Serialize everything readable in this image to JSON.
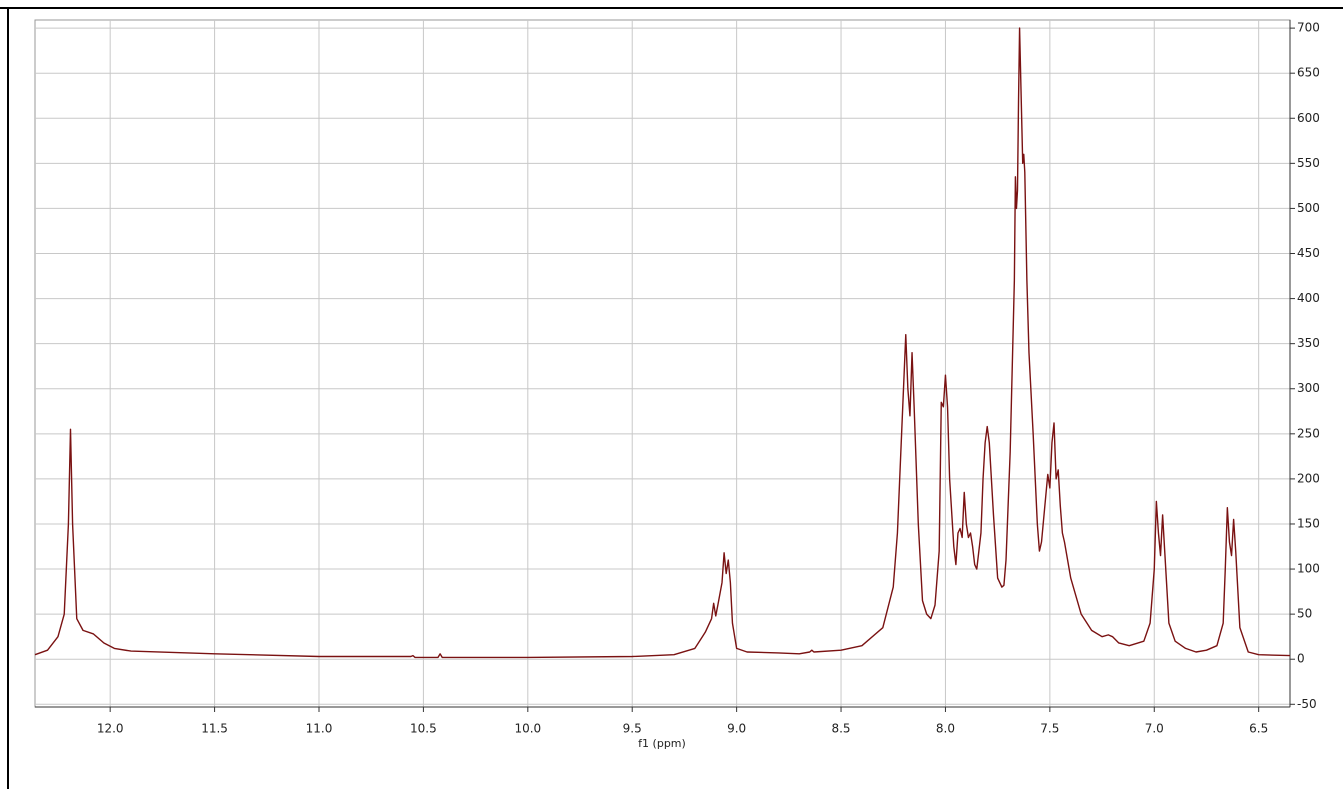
{
  "chart_data": {
    "type": "line",
    "x_label": "f1 (ppm)",
    "color": "#7a1212",
    "grid": true,
    "xlim": [
      12.36,
      6.35
    ],
    "ylim": [
      -53,
      709
    ],
    "xticks": [
      {
        "value": 12.0,
        "label": "12.0"
      },
      {
        "value": 11.5,
        "label": "11.5"
      },
      {
        "value": 11.0,
        "label": "11.0"
      },
      {
        "value": 10.5,
        "label": "10.5"
      },
      {
        "value": 10.0,
        "label": "10.0"
      },
      {
        "value": 9.5,
        "label": "9.5"
      },
      {
        "value": 9.0,
        "label": "9.0"
      },
      {
        "value": 8.5,
        "label": "8.5"
      },
      {
        "value": 8.0,
        "label": "8.0"
      },
      {
        "value": 7.5,
        "label": "7.5"
      },
      {
        "value": 7.0,
        "label": "7.0"
      },
      {
        "value": 6.5,
        "label": "6.5"
      }
    ],
    "yticks": [
      -50,
      0,
      50,
      100,
      150,
      200,
      250,
      300,
      350,
      400,
      450,
      500,
      550,
      600,
      650,
      700
    ],
    "x": [
      12.36,
      12.3,
      12.25,
      12.22,
      12.2,
      12.19,
      12.18,
      12.16,
      12.13,
      12.08,
      12.03,
      11.98,
      11.9,
      11.5,
      11.0,
      10.56,
      10.55,
      10.54,
      10.43,
      10.42,
      10.41,
      10.0,
      9.5,
      9.3,
      9.2,
      9.15,
      9.12,
      9.11,
      9.1,
      9.09,
      9.07,
      9.06,
      9.05,
      9.04,
      9.03,
      9.02,
      9.0,
      8.95,
      8.8,
      8.7,
      8.65,
      8.64,
      8.63,
      8.5,
      8.4,
      8.3,
      8.25,
      8.23,
      8.21,
      8.19,
      8.18,
      8.17,
      8.16,
      8.15,
      8.13,
      8.11,
      8.09,
      8.07,
      8.05,
      8.03,
      8.02,
      8.01,
      8.0,
      7.99,
      7.98,
      7.96,
      7.95,
      7.94,
      7.93,
      7.92,
      7.91,
      7.9,
      7.89,
      7.88,
      7.87,
      7.86,
      7.85,
      7.83,
      7.82,
      7.81,
      7.8,
      7.79,
      7.77,
      7.75,
      7.73,
      7.72,
      7.71,
      7.69,
      7.67,
      7.665,
      7.66,
      7.655,
      7.65,
      7.645,
      7.64,
      7.635,
      7.63,
      7.625,
      7.62,
      7.61,
      7.6,
      7.58,
      7.56,
      7.55,
      7.54,
      7.52,
      7.51,
      7.5,
      7.49,
      7.48,
      7.475,
      7.47,
      7.46,
      7.45,
      7.44,
      7.43,
      7.4,
      7.35,
      7.3,
      7.25,
      7.22,
      7.2,
      7.17,
      7.12,
      7.05,
      7.02,
      7.0,
      6.99,
      6.98,
      6.97,
      6.96,
      6.95,
      6.93,
      6.9,
      6.85,
      6.8,
      6.75,
      6.7,
      6.67,
      6.66,
      6.65,
      6.64,
      6.63,
      6.62,
      6.61,
      6.59,
      6.55,
      6.5,
      6.35
    ],
    "values": [
      5,
      10,
      25,
      50,
      150,
      255,
      150,
      45,
      32,
      28,
      18,
      12,
      9,
      6,
      3,
      3,
      4,
      2,
      2,
      6,
      2,
      2,
      3,
      5,
      12,
      30,
      45,
      62,
      48,
      60,
      85,
      118,
      95,
      110,
      85,
      40,
      12,
      8,
      7,
      6,
      8,
      10,
      8,
      10,
      15,
      35,
      80,
      140,
      250,
      360,
      300,
      270,
      340,
      280,
      150,
      65,
      50,
      45,
      60,
      120,
      285,
      280,
      315,
      280,
      200,
      125,
      105,
      140,
      145,
      135,
      185,
      150,
      135,
      140,
      125,
      105,
      100,
      140,
      200,
      240,
      258,
      240,
      160,
      90,
      80,
      82,
      110,
      230,
      420,
      535,
      500,
      520,
      620,
      700,
      650,
      600,
      550,
      560,
      540,
      420,
      340,
      250,
      150,
      120,
      130,
      180,
      205,
      190,
      240,
      262,
      230,
      200,
      210,
      170,
      140,
      130,
      90,
      50,
      32,
      25,
      27,
      25,
      18,
      15,
      20,
      40,
      100,
      175,
      140,
      115,
      160,
      120,
      40,
      20,
      12,
      8,
      10,
      15,
      40,
      100,
      168,
      130,
      115,
      155,
      120,
      35,
      8,
      5,
      4
    ]
  }
}
